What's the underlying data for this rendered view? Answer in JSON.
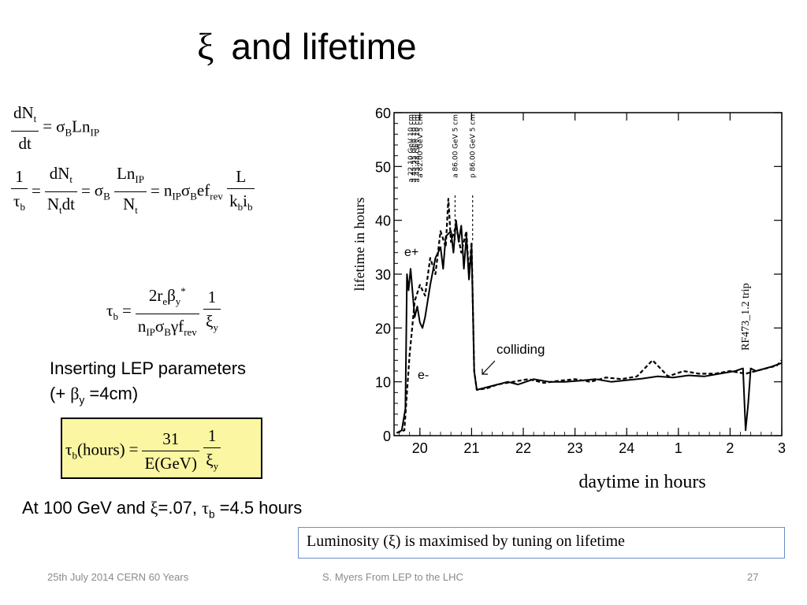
{
  "slide": {
    "title_symbol": "ξ",
    "title_text": "and lifetime",
    "inserting_line1": "Inserting LEP parameters",
    "inserting_line2_open": "(+ ",
    "inserting_beta": "β",
    "inserting_sub": "y",
    "inserting_rest": " =4cm)",
    "result_prefix": "At 100 GeV and ",
    "result_xi": "ξ",
    "result_mid": "=.07, ",
    "result_tau": "τ",
    "result_sub": "b",
    "result_suffix": " =4.5 hours",
    "note": "Luminosity (ξ) is maximised by tuning on lifetime"
  },
  "footer": {
    "left": "25th July 2014 CERN 60 Years",
    "center": "S. Myers From LEP to the LHC",
    "page": "27"
  },
  "chart_data": {
    "type": "line",
    "ylabel": "lifetime in hours",
    "xlabel": "daytime in hours",
    "ylim": [
      0,
      60
    ],
    "yticks": [
      "0",
      "10",
      "20",
      "30",
      "40",
      "50",
      "60"
    ],
    "xticks": [
      "20",
      "21",
      "22",
      "23",
      "24",
      "1",
      "2",
      "3"
    ],
    "annotations": [
      "e+",
      "e-",
      "colliding",
      "RF473_1.2 trip"
    ],
    "top_markers": [
      "a 22.10 GeV  10 cm",
      "a 45.55 GeV  10 cm",
      "a 45.48 GeV  10 cm",
      "a 82.00 GeV  5 cm",
      "a 86.00 GeV  5 cm",
      "p 86.00 GeV  5 cm"
    ],
    "series": [
      {
        "name": "e+",
        "style": "solid",
        "x": [
          19.55,
          19.65,
          19.72,
          19.75,
          19.78,
          19.82,
          19.9,
          19.95,
          20.0,
          20.05,
          20.1,
          20.2,
          20.3,
          20.4,
          20.45,
          20.5,
          20.6,
          20.65,
          20.7,
          20.75,
          20.8,
          20.85,
          20.9,
          20.95,
          21.0,
          21.05,
          21.1,
          21.3,
          21.5,
          21.7,
          21.9,
          22.2,
          22.5,
          22.8,
          23.1,
          23.4,
          23.7,
          24.0,
          24.3,
          24.6,
          24.9,
          25.2,
          25.5,
          25.8,
          26.1,
          26.25,
          26.3,
          26.35,
          26.4,
          26.5,
          26.8,
          27.0
        ],
        "y": [
          0.5,
          1,
          5,
          30,
          27,
          31,
          22,
          24,
          21,
          20,
          22,
          28,
          33,
          35,
          31,
          37,
          38,
          34,
          40,
          36,
          39,
          31,
          37,
          29,
          35,
          12,
          8.5,
          9,
          9.5,
          10,
          9.5,
          10.5,
          10,
          10,
          10.2,
          10.5,
          10,
          10.3,
          10.6,
          11,
          10.8,
          11.2,
          11,
          11.5,
          12,
          12.5,
          1,
          6,
          12.5,
          12,
          12.8,
          13.5
        ]
      },
      {
        "name": "e-",
        "style": "dashed",
        "x": [
          19.55,
          19.7,
          19.8,
          19.85,
          19.9,
          20.0,
          20.1,
          20.2,
          20.3,
          20.4,
          20.5,
          20.55,
          20.6,
          20.7,
          20.8,
          20.9,
          20.95,
          21.0,
          21.05,
          21.1,
          21.3,
          21.5,
          21.8,
          22.1,
          22.4,
          22.7,
          23.0,
          23.3,
          23.6,
          23.9,
          24.2,
          24.5,
          24.8,
          25.1,
          25.4,
          25.7,
          26.0,
          26.3,
          26.5,
          26.7,
          26.9,
          27.0
        ],
        "y": [
          0.5,
          1,
          15,
          20,
          25,
          28,
          26,
          33,
          30,
          38,
          35,
          44,
          36,
          39,
          34,
          38,
          30,
          36,
          12,
          8.5,
          8.8,
          9.5,
          10,
          10.5,
          9.8,
          10.2,
          10.5,
          10,
          10.8,
          10.5,
          11,
          14,
          11,
          12,
          11.5,
          11.5,
          12,
          11.5,
          12,
          12.5,
          13,
          14
        ]
      }
    ]
  }
}
